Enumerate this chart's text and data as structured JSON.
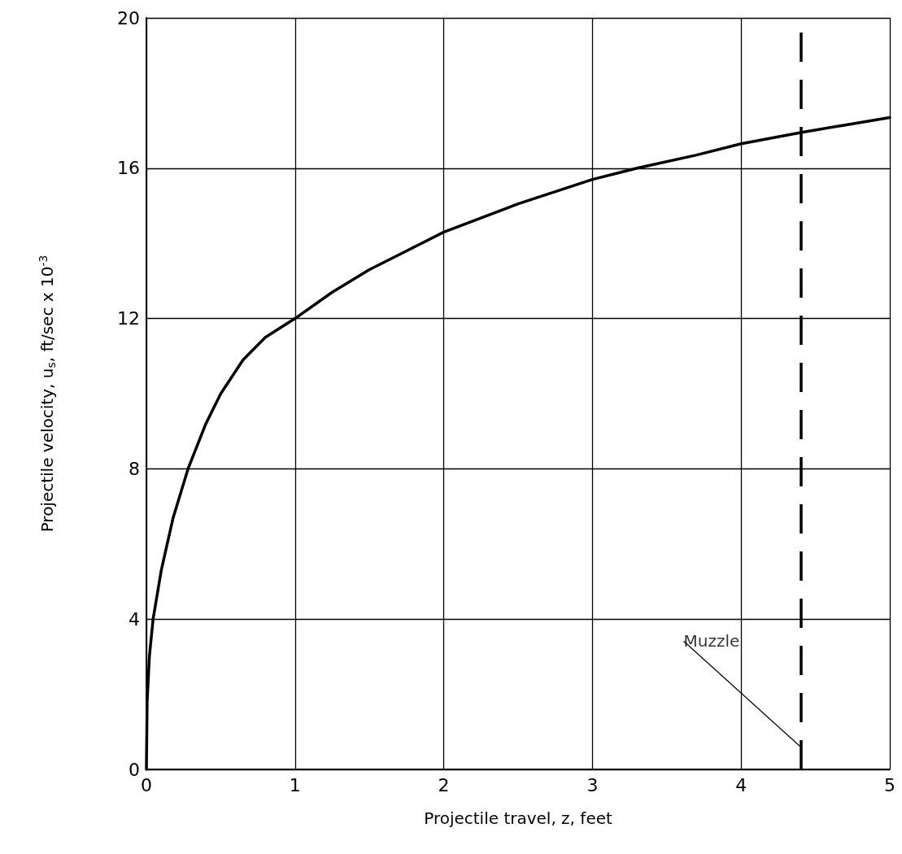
{
  "chart_data": {
    "type": "line",
    "xlabel": "Projectile travel, z, feet",
    "ylabel": "Projectile velocity, u$_{s}$, ft/sec x 10$^{-3}$",
    "x": [
      0,
      0.005,
      0.02,
      0.045,
      0.1,
      0.18,
      0.28,
      0.4,
      0.5,
      0.65,
      0.8,
      1,
      1.25,
      1.5,
      1.75,
      2,
      2.5,
      3,
      3.3,
      3.7,
      4,
      4.4,
      4.7,
      5
    ],
    "series": [
      {
        "color": "#000000",
        "values": [
          0,
          1.8,
          3.0,
          4.0,
          5.3,
          6.7,
          8.0,
          9.2,
          10.0,
          10.9,
          11.5,
          12.0,
          12.7,
          13.3,
          13.8,
          14.3,
          15.05,
          15.7,
          16.0,
          16.35,
          16.65,
          16.95,
          17.15,
          17.35
        ]
      }
    ],
    "xlim": [
      0,
      5
    ],
    "xticks": [
      0,
      1,
      2,
      3,
      4,
      5
    ],
    "ylim": [
      0,
      20
    ],
    "yticks": [
      0,
      4,
      8,
      12,
      16,
      20
    ],
    "grid": true,
    "marker": "none",
    "line_style": "solid",
    "ref_lines": [
      {
        "axis": "x",
        "value": 4.4,
        "color": "#000000",
        "line_style": "dashed"
      }
    ],
    "annotations": [
      {
        "text": "Muzzle",
        "x": 4.4,
        "y": 0.6
      }
    ]
  }
}
